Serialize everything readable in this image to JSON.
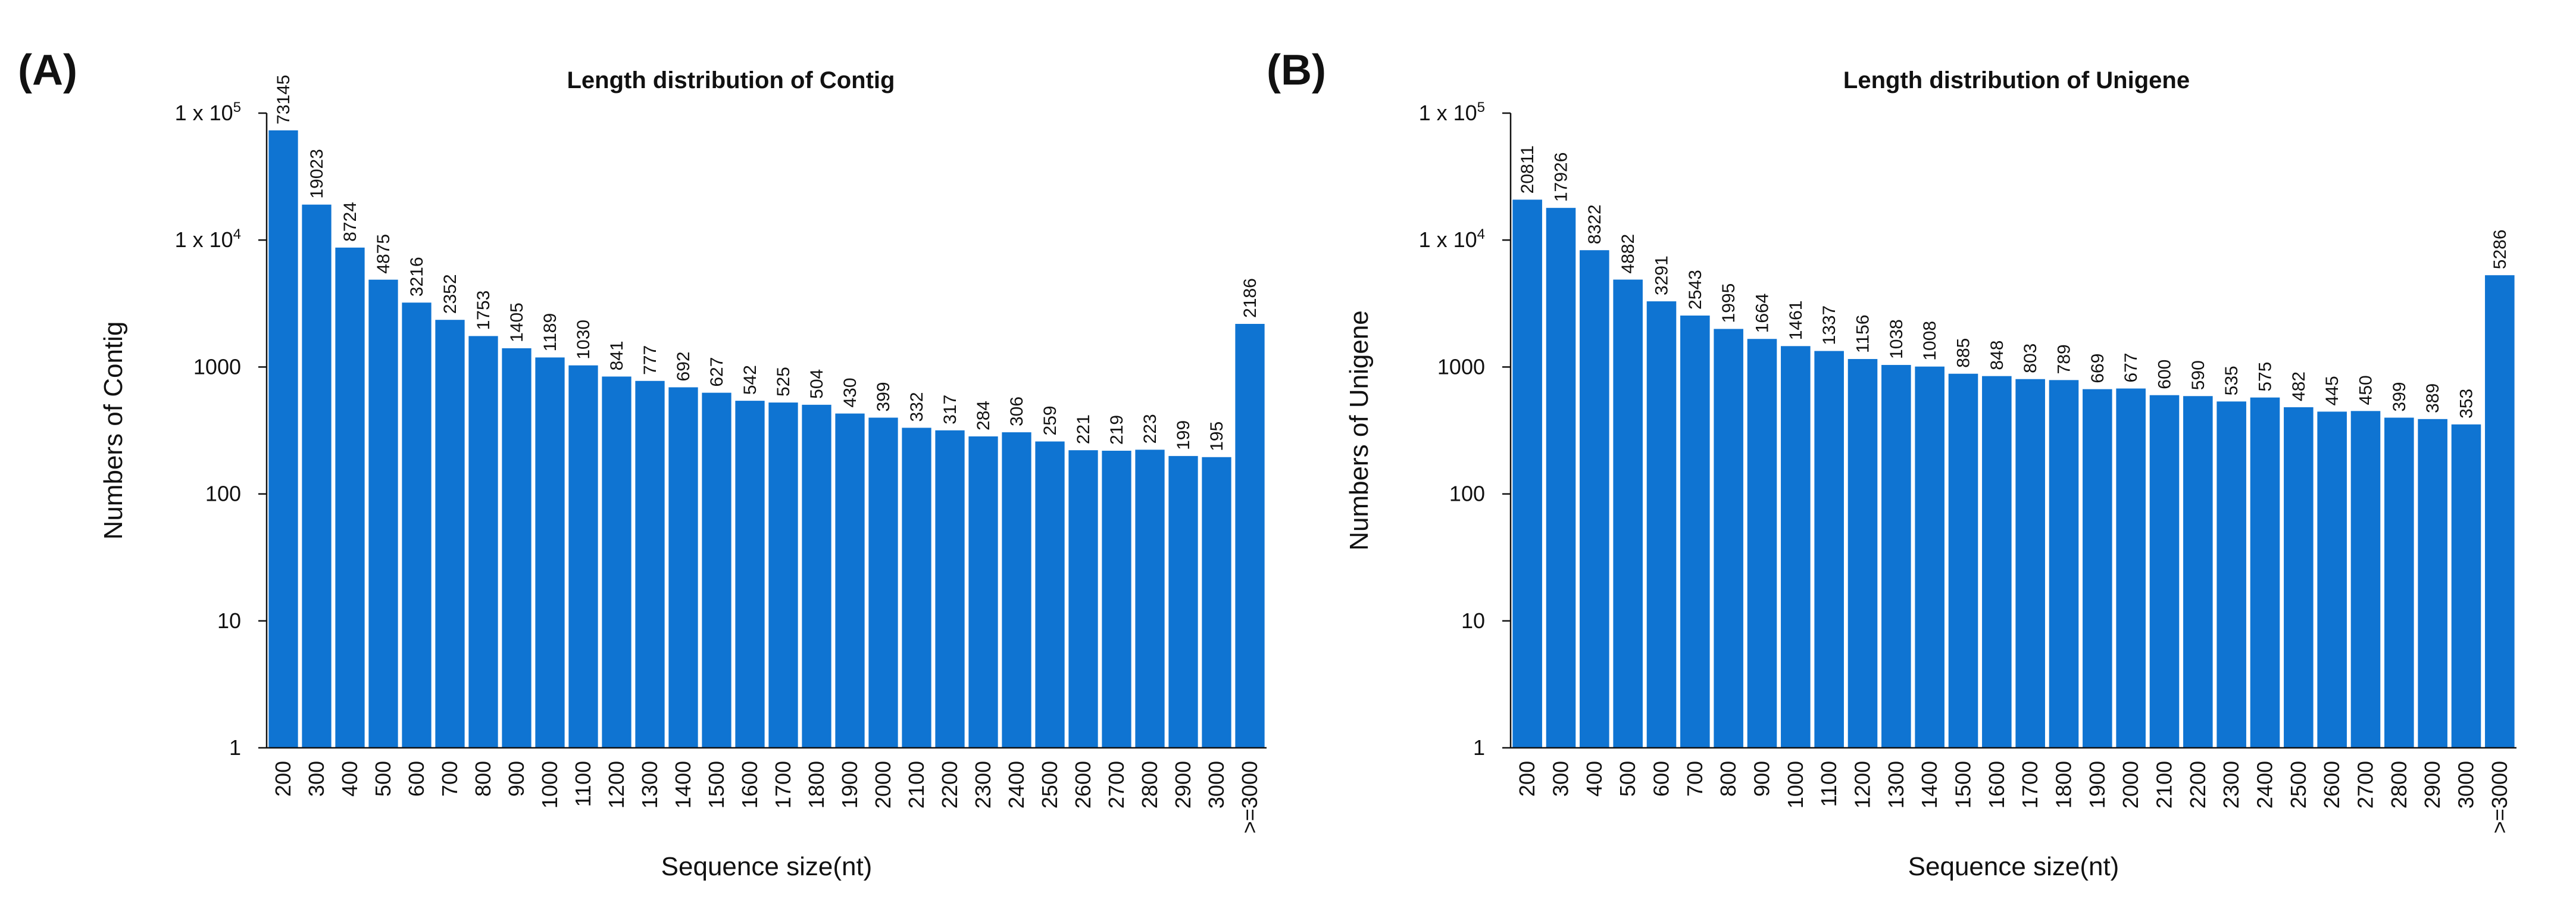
{
  "chart_data": [
    {
      "type": "bar",
      "panel_label": "(A)",
      "title": "Length distribution of Contig",
      "xlabel": "Sequence size(nt)",
      "ylabel": "Numbers of Contig",
      "y_scale": "log",
      "ylim": [
        1,
        100000
      ],
      "y_ticks": [
        {
          "value": 100000,
          "label": "1 x 10",
          "sup": "5"
        },
        {
          "value": 10000,
          "label": "1 x 10",
          "sup": "4"
        },
        {
          "value": 1000,
          "label": "1000",
          "sup": ""
        },
        {
          "value": 100,
          "label": "100",
          "sup": ""
        },
        {
          "value": 10,
          "label": "10",
          "sup": ""
        },
        {
          "value": 1,
          "label": "1",
          "sup": ""
        }
      ],
      "categories": [
        "200",
        "300",
        "400",
        "500",
        "600",
        "700",
        "800",
        "900",
        "1000",
        "1100",
        "1200",
        "1300",
        "1400",
        "1500",
        "1600",
        "1700",
        "1800",
        "1900",
        "2000",
        "2100",
        "2200",
        "2300",
        "2400",
        "2500",
        "2600",
        "2700",
        "2800",
        "2900",
        "3000",
        ">=3000"
      ],
      "values": [
        73145,
        19023,
        8724,
        4875,
        3216,
        2352,
        1753,
        1405,
        1189,
        1030,
        841,
        777,
        692,
        627,
        542,
        525,
        504,
        430,
        399,
        332,
        317,
        284,
        306,
        259,
        221,
        219,
        223,
        199,
        195,
        2186
      ],
      "color": "#0f74d2"
    },
    {
      "type": "bar",
      "panel_label": "(B)",
      "title": "Length distribution of Unigene",
      "xlabel": "Sequence size(nt)",
      "ylabel": "Numbers of Unigene",
      "y_scale": "log",
      "ylim": [
        1,
        100000
      ],
      "y_ticks": [
        {
          "value": 100000,
          "label": "1 x 10",
          "sup": "5"
        },
        {
          "value": 10000,
          "label": "1 x 10",
          "sup": "4"
        },
        {
          "value": 1000,
          "label": "1000",
          "sup": ""
        },
        {
          "value": 100,
          "label": "100",
          "sup": ""
        },
        {
          "value": 10,
          "label": "10",
          "sup": ""
        },
        {
          "value": 1,
          "label": "1",
          "sup": ""
        }
      ],
      "categories": [
        "200",
        "300",
        "400",
        "500",
        "600",
        "700",
        "800",
        "900",
        "1000",
        "1100",
        "1200",
        "1300",
        "1400",
        "1500",
        "1600",
        "1700",
        "1800",
        "1900",
        "2000",
        "2100",
        "2200",
        "2300",
        "2400",
        "2500",
        "2600",
        "2700",
        "2800",
        "2900",
        "3000",
        ">=3000"
      ],
      "values": [
        20811,
        17926,
        8322,
        4882,
        3291,
        2543,
        1995,
        1664,
        1461,
        1337,
        1156,
        1038,
        1008,
        885,
        848,
        803,
        789,
        669,
        677,
        600,
        590,
        535,
        575,
        482,
        445,
        450,
        399,
        389,
        353,
        5286
      ],
      "color": "#0f74d2"
    }
  ]
}
